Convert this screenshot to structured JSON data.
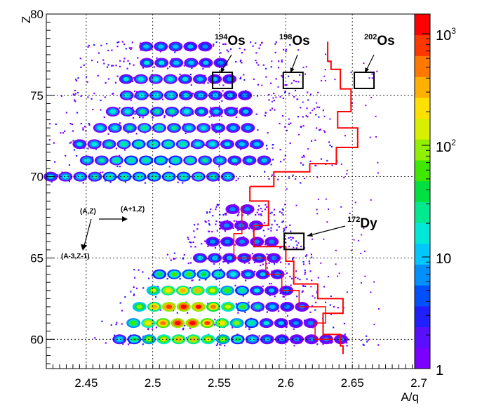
{
  "chart_data": {
    "type": "heatmap",
    "title": "",
    "xlabel": "A/q",
    "ylabel": "Z",
    "xlim": [
      2.42,
      2.7
    ],
    "ylim": [
      58.2,
      80.0
    ],
    "x_ticks": [
      2.45,
      2.5,
      2.55,
      2.6,
      2.65,
      2.7
    ],
    "x_tick_labels": [
      "2.45",
      "2.5",
      "2.55",
      "2.6",
      "2.65",
      "2.7"
    ],
    "y_ticks": [
      60,
      65,
      70,
      75,
      80
    ],
    "y_tick_labels": [
      "60",
      "65",
      "70",
      "75",
      "80"
    ],
    "grid": true,
    "colorbar": {
      "scale": "log",
      "range": [
        1,
        1500
      ],
      "ticks": [
        {
          "value": 1,
          "label": "1"
        },
        {
          "value": 10,
          "label": "10"
        },
        {
          "value": 100,
          "label_base": "10",
          "label_exp": "2"
        },
        {
          "value": 1000,
          "label_base": "10",
          "label_exp": "3"
        }
      ],
      "colors": [
        "#7a00ff",
        "#5a10ff",
        "#2020ff",
        "#0050ff",
        "#0090ff",
        "#00c8ff",
        "#00e8d8",
        "#00e890",
        "#00e040",
        "#40e800",
        "#90f000",
        "#d8f000",
        "#ffe000",
        "#ffb000",
        "#ff7800",
        "#ff3800",
        "#ff0000"
      ]
    },
    "annotations": [
      {
        "label_super": "194",
        "label": "Os",
        "x": 2.5524,
        "y": 75.9
      },
      {
        "label_super": "198",
        "label": "Os",
        "x": 2.6055,
        "y": 75.9
      },
      {
        "label_super": "202",
        "label": "Os",
        "x": 2.6589,
        "y": 75.9
      },
      {
        "label_super": "172",
        "label": "Dy",
        "x": 2.6062,
        "y": 66.0
      }
    ],
    "diagram_labels": [
      "(A,Z)",
      "(A+1,Z)",
      "(A-3,Z-1)"
    ]
  }
}
